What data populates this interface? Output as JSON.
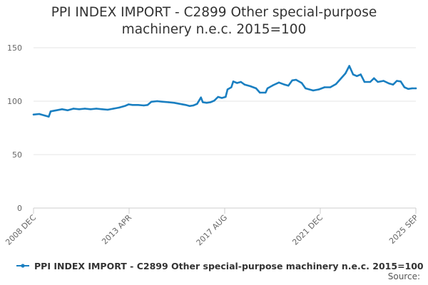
{
  "chart_data": {
    "type": "line",
    "title_lines": [
      "PPI INDEX IMPORT - C2899 Other special-purpose",
      "machinery n.e.c. 2015=100"
    ],
    "xlabel": "",
    "ylabel": "",
    "x_tick_labels": [
      "2008 DEC",
      "2013 APR",
      "2017 AUG",
      "2021 DEC",
      "2025 SEP"
    ],
    "y_ticks": [
      0,
      50,
      100,
      150
    ],
    "ylim": [
      0,
      150
    ],
    "xlim": [
      "2008-12",
      "2025-09"
    ],
    "grid": "horizontal",
    "legend_position": "bottom",
    "source_label": "Source:",
    "colors": {
      "series": "#1a7fc1",
      "grid": "#e6e6e6",
      "axis": "#cccccc"
    },
    "series": [
      {
        "name": "PPI INDEX IMPORT - C2899 Other special-purpose machinery n.e.c. 2015=100",
        "points": [
          [
            "2008-12",
            87.5
          ],
          [
            "2009-03",
            88
          ],
          [
            "2009-06",
            86.5
          ],
          [
            "2009-08",
            85.5
          ],
          [
            "2009-09",
            90.5
          ],
          [
            "2009-12",
            91.5
          ],
          [
            "2010-03",
            92.5
          ],
          [
            "2010-06",
            91.5
          ],
          [
            "2010-09",
            93
          ],
          [
            "2010-12",
            92.5
          ],
          [
            "2011-03",
            93
          ],
          [
            "2011-06",
            92.5
          ],
          [
            "2011-09",
            93
          ],
          [
            "2011-12",
            92.5
          ],
          [
            "2012-03",
            92
          ],
          [
            "2012-06",
            93
          ],
          [
            "2012-09",
            94
          ],
          [
            "2012-12",
            95.5
          ],
          [
            "2013-02",
            97
          ],
          [
            "2013-04",
            96.5
          ],
          [
            "2013-07",
            96.5
          ],
          [
            "2013-10",
            96
          ],
          [
            "2013-12",
            96.5
          ],
          [
            "2014-02",
            99.5
          ],
          [
            "2014-05",
            100
          ],
          [
            "2014-08",
            99.5
          ],
          [
            "2014-11",
            99
          ],
          [
            "2015-02",
            98.5
          ],
          [
            "2015-05",
            97.5
          ],
          [
            "2015-08",
            96.5
          ],
          [
            "2015-10",
            95.5
          ],
          [
            "2015-12",
            96
          ],
          [
            "2016-02",
            97.5
          ],
          [
            "2016-04",
            103.5
          ],
          [
            "2016-05",
            99
          ],
          [
            "2016-07",
            98.5
          ],
          [
            "2016-09",
            99
          ],
          [
            "2016-11",
            100.5
          ],
          [
            "2017-01",
            104
          ],
          [
            "2017-03",
            103
          ],
          [
            "2017-05",
            104
          ],
          [
            "2017-06",
            111
          ],
          [
            "2017-08",
            113
          ],
          [
            "2017-09",
            118.5
          ],
          [
            "2017-11",
            117
          ],
          [
            "2018-01",
            118
          ],
          [
            "2018-03",
            115.5
          ],
          [
            "2018-06",
            114
          ],
          [
            "2018-09",
            112
          ],
          [
            "2018-11",
            108
          ],
          [
            "2019-02",
            108
          ],
          [
            "2019-03",
            112
          ],
          [
            "2019-06",
            115
          ],
          [
            "2019-09",
            117.5
          ],
          [
            "2019-12",
            115.5
          ],
          [
            "2020-02",
            114.5
          ],
          [
            "2020-04",
            119.5
          ],
          [
            "2020-06",
            120
          ],
          [
            "2020-09",
            117
          ],
          [
            "2020-11",
            112
          ],
          [
            "2021-03",
            110
          ],
          [
            "2021-06",
            111
          ],
          [
            "2021-09",
            113
          ],
          [
            "2021-12",
            113
          ],
          [
            "2022-03",
            116
          ],
          [
            "2022-06",
            122
          ],
          [
            "2022-08",
            126
          ],
          [
            "2022-10",
            133
          ],
          [
            "2022-12",
            125
          ],
          [
            "2023-02",
            123.5
          ],
          [
            "2023-04",
            125
          ],
          [
            "2023-06",
            118
          ],
          [
            "2023-09",
            118
          ],
          [
            "2023-11",
            121.5
          ],
          [
            "2024-01",
            118
          ],
          [
            "2024-04",
            119
          ],
          [
            "2024-07",
            116.5
          ],
          [
            "2024-09",
            115.5
          ],
          [
            "2024-11",
            119
          ],
          [
            "2025-01",
            118.5
          ],
          [
            "2025-03",
            113
          ],
          [
            "2025-05",
            111.5
          ],
          [
            "2025-07",
            112
          ],
          [
            "2025-09",
            112
          ]
        ]
      }
    ]
  }
}
